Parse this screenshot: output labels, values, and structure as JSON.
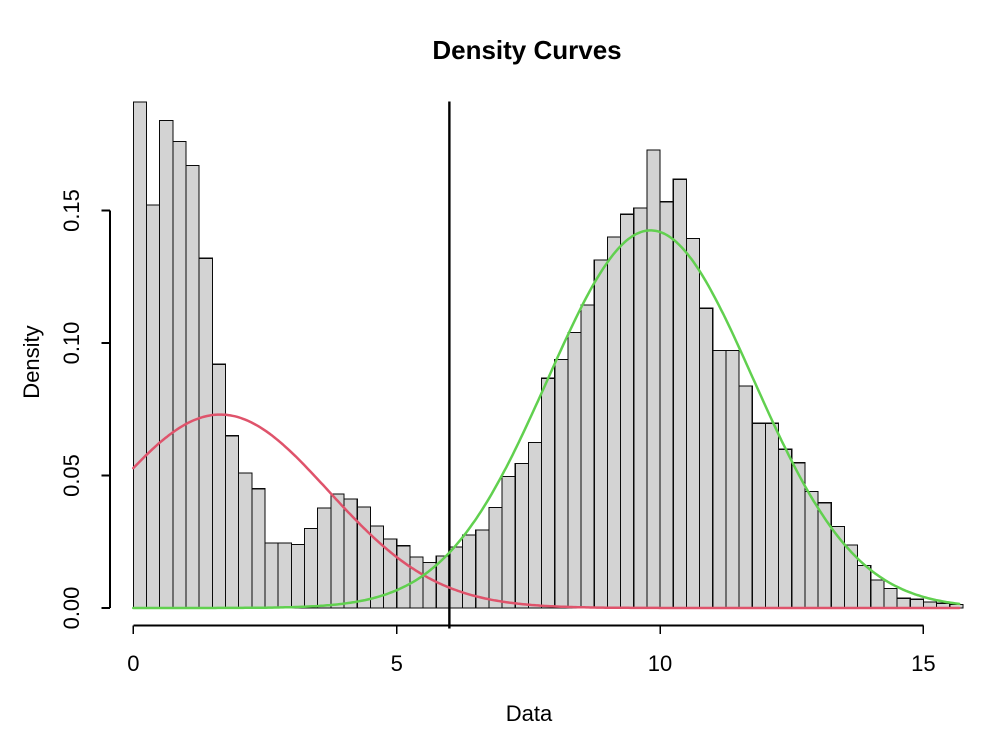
{
  "chart_data": {
    "type": "bar",
    "subtype": "histogram-with-density-curves",
    "title": "Density Curves",
    "xlabel": "Data",
    "ylabel": "Density",
    "background_color": "#ffffff",
    "text_color": "#000000",
    "grid": "off",
    "legend": "none",
    "xlim": [
      0,
      15.69
    ],
    "ylim": [
      0,
      0.193
    ],
    "x_ticks": {
      "values": [
        0,
        5,
        10,
        15
      ],
      "labels": [
        "0",
        "5",
        "10",
        "15"
      ]
    },
    "y_ticks": {
      "values": [
        0,
        0.05,
        0.1,
        0.15
      ],
      "labels": [
        "0.00",
        "0.05",
        "0.10",
        "0.15"
      ]
    },
    "histogram": {
      "bin_start": 0,
      "bin_width": 0.25,
      "fill": "#d3d3d3",
      "stroke": "#0a0a0a",
      "densities": [
        0.191,
        0.152,
        0.184,
        0.176,
        0.167,
        0.132,
        0.092,
        0.065,
        0.051,
        0.045,
        0.0245,
        0.0245,
        0.024,
        0.03,
        0.0377,
        0.043,
        0.0411,
        0.0381,
        0.0309,
        0.026,
        0.0235,
        0.0192,
        0.0171,
        0.0196,
        0.023,
        0.0275,
        0.0294,
        0.0379,
        0.0496,
        0.0546,
        0.0625,
        0.0867,
        0.0938,
        0.104,
        0.1143,
        0.1313,
        0.14,
        0.1486,
        0.151,
        0.1728,
        0.1533,
        0.1618,
        0.1395,
        0.1131,
        0.0971,
        0.0971,
        0.0838,
        0.0697,
        0.0697,
        0.0599,
        0.0548,
        0.0439,
        0.0397,
        0.0307,
        0.0238,
        0.016,
        0.0106,
        0.0074,
        0.0037,
        0.0033,
        0.0022,
        0.0018,
        0.0013
      ]
    },
    "curves": [
      {
        "name": "red",
        "color": "#df536b",
        "shape": "gaussian",
        "amplitude": 0.073,
        "mean": 1.65,
        "sd": 2.05,
        "line_width": 2.5
      },
      {
        "name": "green",
        "color": "#61d04f",
        "shape": "gaussian",
        "amplitude": 0.1425,
        "mean": 9.82,
        "sd": 1.95,
        "line_width": 2.5
      }
    ],
    "vline": {
      "x": 6,
      "color": "#000000",
      "width": 2.4
    }
  }
}
